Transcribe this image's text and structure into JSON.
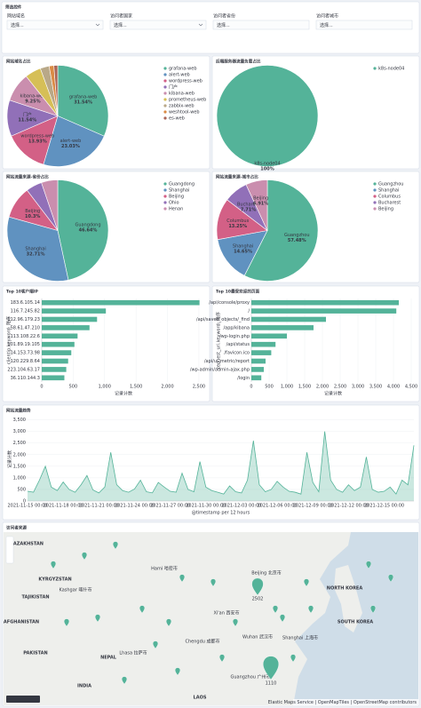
{
  "filters": {
    "title": "筛选控件",
    "controls": [
      {
        "label": "网站域名",
        "placeholder": "选择..."
      },
      {
        "label": "访问者国家",
        "placeholder": "选择..."
      },
      {
        "label": "访问者省份",
        "placeholder": "选择..."
      },
      {
        "label": "访问者城市",
        "placeholder": "选择..."
      }
    ]
  },
  "chart_data": [
    {
      "type": "pie",
      "title": "网站域名占比",
      "categories": [
        "grafana-web",
        "alert-web",
        "wordpress-web",
        "门户",
        "kibana-web",
        "prometheus-web",
        "zabbix-web",
        "weshtool-web",
        "es-web"
      ],
      "values": [
        31.54,
        23.03,
        13.93,
        11.54,
        9.25,
        5.12,
        2.87,
        1.5,
        1.22
      ],
      "value_labels": [
        "31.54%",
        "23.03%",
        "13.93%",
        "11.54%",
        "9.25%",
        "5.12%",
        "2.87%",
        "1.5%",
        "1.22%"
      ],
      "colors": [
        "#54b399",
        "#6092c0",
        "#d36086",
        "#9170b8",
        "#ca8eae",
        "#d6bf57",
        "#b9a888",
        "#da8b45",
        "#aa6556"
      ]
    },
    {
      "type": "pie",
      "title": "后端服务器流量负载占比",
      "categories": [
        "k8s-node04"
      ],
      "values": [
        100
      ],
      "value_labels": [
        "100%"
      ],
      "colors": [
        "#54b399"
      ]
    },
    {
      "type": "pie",
      "title": "网站流量来源-省份占比",
      "categories": [
        "Guangdong",
        "Shanghai",
        "Beijing",
        "Ohio",
        "Henan"
      ],
      "values": [
        46.64,
        32.71,
        10.3,
        5.12,
        5.23
      ],
      "value_labels": [
        "46.64%",
        "32.71%",
        "10.3%",
        "5.12%",
        "5.23%"
      ],
      "colors": [
        "#54b399",
        "#6092c0",
        "#d36086",
        "#9170b8",
        "#ca8eae"
      ]
    },
    {
      "type": "pie",
      "title": "网站流量来源-城市占比",
      "categories": [
        "Guangzhou",
        "Shanghai",
        "Columbus",
        "Bucharest",
        "Beijing"
      ],
      "values": [
        57.48,
        14.65,
        13.25,
        7.71,
        6.91
      ],
      "value_labels": [
        "57.48%",
        "14.65%",
        "13.25%",
        "7.71%",
        "6.91%"
      ],
      "colors": [
        "#54b399",
        "#6092c0",
        "#d36086",
        "#9170b8",
        "#ca8eae"
      ]
    },
    {
      "type": "hbar",
      "title": "Top 10客户端IP",
      "x_label": "记录计数",
      "y_label": "clientip.keyword: 降序",
      "categories": [
        "183.6.105.14",
        "116.7.245.82",
        "112.96.179.23",
        "58.61.47.210",
        "113.108.22.6",
        "101.89.19.105",
        "14.153.73.98",
        "120.229.8.64",
        "223.104.63.17",
        "36.110.144.3"
      ],
      "values": [
        2510,
        1020,
        880,
        760,
        570,
        520,
        470,
        420,
        390,
        360
      ],
      "color": "#54b399",
      "xlim": [
        0,
        2600
      ],
      "xticks": [
        0,
        500,
        {
          "value": 1000,
          "label": "1,000"
        },
        {
          "value": 1500,
          "label": "1,500"
        },
        {
          "value": 2000,
          "label": "2,000"
        },
        {
          "value": 2500,
          "label": "2,500"
        }
      ],
      "grid": true
    },
    {
      "type": "hbar",
      "title": "Top 10最受欢迎的页面",
      "x_label": "记录计数",
      "y_label": "request_uri.keyword: 降序",
      "categories": [
        "/api/console/proxy",
        "/",
        "/api/saved_objects/_find",
        "/app/kibana",
        "/wp-login.php",
        "/api/status",
        "/favicon.ico",
        "/api/ui_metric/report",
        "/wp-admin/admin-ajax.php",
        "/login"
      ],
      "values": [
        4150,
        4080,
        2100,
        1750,
        1000,
        680,
        560,
        400,
        350,
        280
      ],
      "color": "#54b399",
      "xlim": [
        0,
        4600
      ],
      "xticks": [
        0,
        500,
        {
          "value": 1000,
          "label": "1,000"
        },
        {
          "value": 1500,
          "label": "1,500"
        },
        {
          "value": 2000,
          "label": "2,000"
        },
        {
          "value": 2500,
          "label": "2,500"
        },
        {
          "value": 3000,
          "label": "3,000"
        },
        {
          "value": 3500,
          "label": "3,500"
        },
        {
          "value": 4000,
          "label": "4,000"
        },
        {
          "value": 4500,
          "label": "4,500"
        }
      ],
      "grid": true
    },
    {
      "type": "area",
      "title": "网站流量趋势",
      "x_label": "@timestamp per 12 hours",
      "y_label": "记录计数",
      "color": "#54b399",
      "categories": [
        "2021-11-15 00:00",
        null,
        null,
        null,
        null,
        null,
        "2021-11-18 00:00",
        null,
        null,
        null,
        null,
        null,
        "2021-11-21 00:00",
        null,
        null,
        null,
        null,
        null,
        "2021-11-24 00:00",
        null,
        null,
        null,
        null,
        null,
        "2021-11-27 00:00",
        null,
        null,
        null,
        null,
        null,
        "2021-11-30 00:00",
        null,
        null,
        null,
        null,
        null,
        "2021-12-03 00:00",
        null,
        null,
        null,
        null,
        null,
        "2021-12-06 00:00",
        null,
        null,
        null,
        null,
        null,
        "2021-12-09 00:00",
        null,
        null,
        null,
        null,
        null,
        "2021-12-12 00:00",
        null,
        null,
        null,
        null,
        null,
        "2021-12-15 00:00",
        null,
        null,
        null,
        null,
        null
      ],
      "values": [
        420,
        380,
        900,
        1500,
        600,
        450,
        820,
        500,
        380,
        700,
        1100,
        480,
        350,
        600,
        2100,
        700,
        450,
        380,
        520,
        900,
        400,
        350,
        800,
        600,
        420,
        380,
        1200,
        500,
        400,
        1700,
        600,
        450,
        380,
        300,
        650,
        400,
        350,
        900,
        2600,
        700,
        400,
        500,
        850,
        600,
        420,
        380,
        300,
        2100,
        800,
        400,
        3000,
        900,
        500,
        380,
        700,
        450,
        600,
        1900,
        500,
        380,
        420,
        600,
        300,
        900,
        700,
        2400
      ],
      "ylim": [
        0,
        3600
      ],
      "yticks": [
        0,
        500,
        {
          "value": 1000,
          "label": "1,000"
        },
        {
          "value": 1500,
          "label": "1,500"
        },
        {
          "value": 2000,
          "label": "2,000"
        },
        {
          "value": 2500,
          "label": "2,500"
        },
        {
          "value": 3000,
          "label": "3,000"
        },
        {
          "value": 3500,
          "label": "3,500"
        }
      ],
      "grid": true
    }
  ],
  "map": {
    "title": "访问者来源",
    "places": [
      "KAZAKHSTAN",
      "KYRGYZSTAN",
      "TAJIKISTAN",
      "AFGHANISTAN",
      "PAKISTAN",
      "NEPAL",
      "INDIA",
      "NORTH KOREA",
      "SOUTH KOREA",
      "LAOS",
      "Hami 哈密市",
      "Kashgar 喀什市",
      "Lhasa 拉萨市",
      "Beijing 北京市",
      "Xi'an 西安市",
      "Chengdu 成都市",
      "Wuhan 武汉市",
      "Shanghai 上海市",
      "Guangzhou 广州市"
    ],
    "clusters": [
      2502,
      1110
    ],
    "attribution": "Elastic Maps Service | OpenMapTiles | OpenStreetMap contributors"
  }
}
